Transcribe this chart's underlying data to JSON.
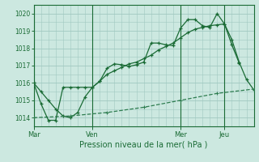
{
  "title": "Pression niveau de la mer( hPa )",
  "bg_color": "#cce8e0",
  "grid_color": "#a0c8c0",
  "line_color_main": "#1a6b35",
  "line_color_dashed": "#2e7d50",
  "xtick_labels": [
    "Mar",
    "Ven",
    "Mer",
    "Jeu"
  ],
  "xtick_positions": [
    0,
    8,
    20,
    26
  ],
  "ylim": [
    1013.5,
    1020.5
  ],
  "yticks": [
    1014,
    1015,
    1016,
    1017,
    1018,
    1019,
    1020
  ],
  "line1_x": [
    0,
    1,
    2,
    3,
    4,
    5,
    6,
    7,
    8,
    9,
    10,
    11,
    12,
    13,
    14,
    15,
    16,
    17,
    18,
    19,
    20,
    21,
    22,
    23,
    24,
    25,
    26,
    27,
    28
  ],
  "line1_y": [
    1016.0,
    1014.8,
    1013.85,
    1013.85,
    1015.75,
    1015.75,
    1015.75,
    1015.75,
    1015.75,
    1016.1,
    1016.85,
    1017.1,
    1017.05,
    1016.95,
    1017.05,
    1017.2,
    1018.3,
    1018.3,
    1018.2,
    1018.15,
    1019.15,
    1019.65,
    1019.65,
    1019.3,
    1019.2,
    1020.0,
    1019.4,
    1018.2,
    1017.15
  ],
  "line2_x": [
    0,
    1,
    2,
    3,
    4,
    5,
    6,
    7,
    8,
    9,
    10,
    11,
    12,
    13,
    14,
    15,
    16,
    17,
    18,
    19,
    20,
    21,
    22,
    23,
    24,
    25,
    26,
    27,
    28,
    29,
    30
  ],
  "line2_y": [
    1016.0,
    1015.5,
    1015.0,
    1014.5,
    1014.1,
    1014.0,
    1014.3,
    1015.2,
    1015.75,
    1016.1,
    1016.5,
    1016.7,
    1016.9,
    1017.1,
    1017.2,
    1017.4,
    1017.6,
    1017.9,
    1018.1,
    1018.3,
    1018.6,
    1018.9,
    1019.1,
    1019.2,
    1019.3,
    1019.35,
    1019.4,
    1018.5,
    1017.2,
    1016.2,
    1015.6
  ],
  "line3_x": [
    0,
    5,
    10,
    15,
    20,
    25,
    30
  ],
  "line3_y": [
    1014.0,
    1014.1,
    1014.3,
    1014.6,
    1015.0,
    1015.4,
    1015.65
  ],
  "vline_positions": [
    0,
    8,
    20,
    26
  ],
  "xlim": [
    0,
    30
  ]
}
